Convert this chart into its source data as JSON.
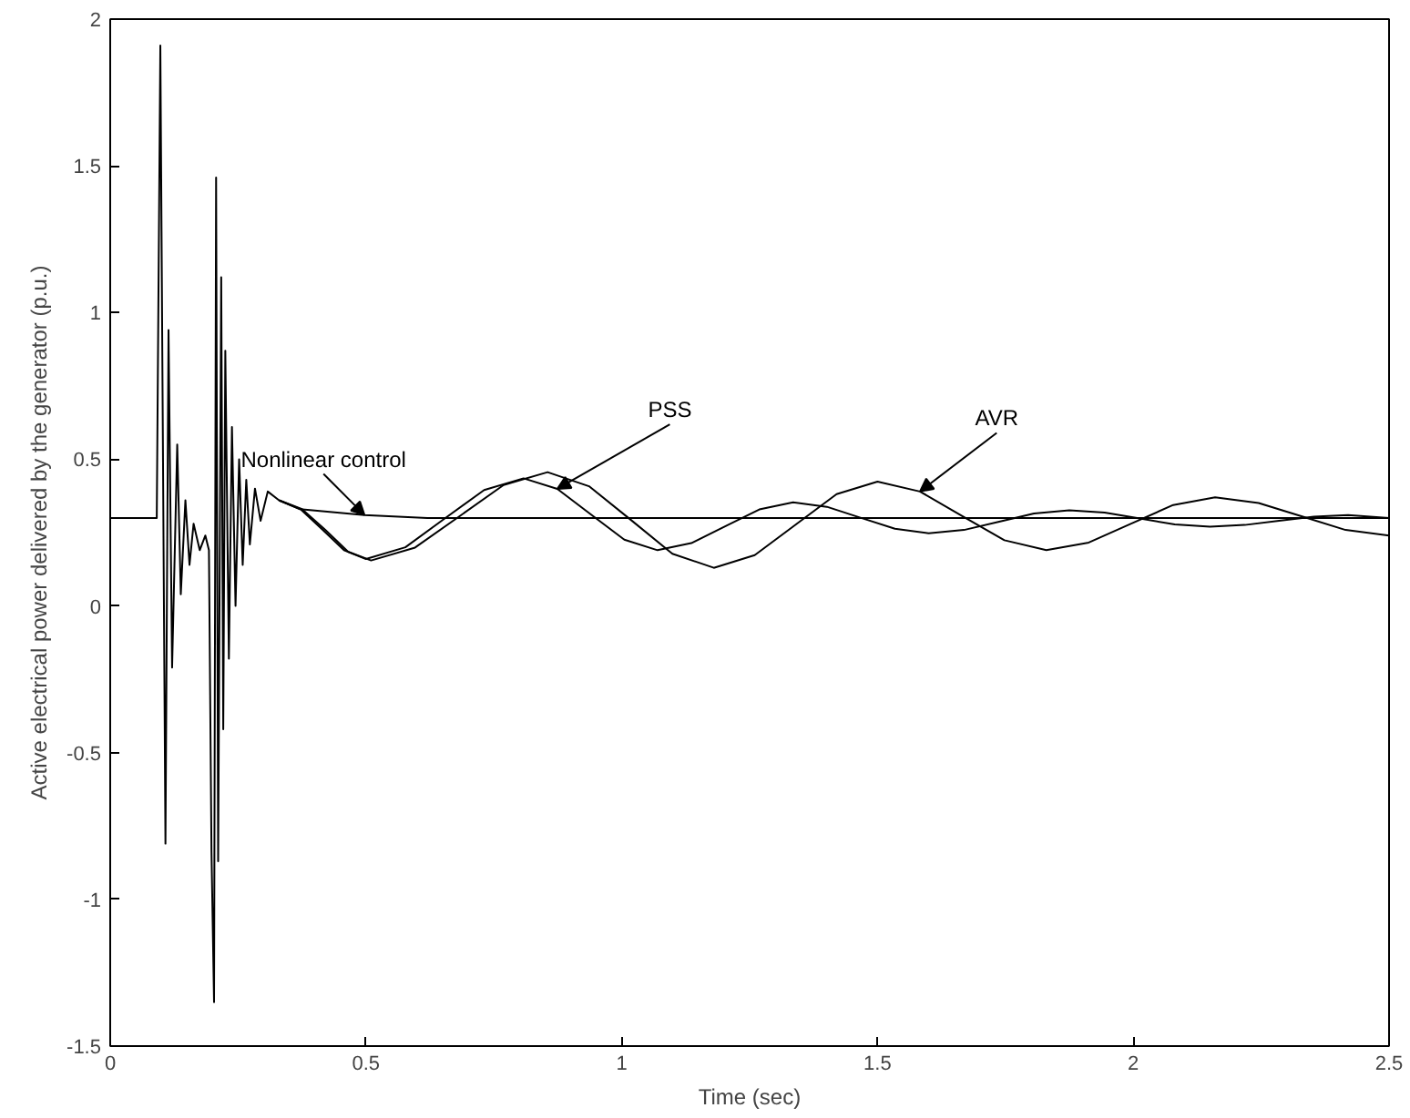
{
  "chart_data": {
    "type": "line",
    "xlabel": "Time (sec)",
    "ylabel": "Active electrical power delivered by the generator (p.u.)",
    "xlim": [
      0,
      2.5
    ],
    "ylim": [
      -1.5,
      2
    ],
    "xticks": [
      0,
      0.5,
      1,
      1.5,
      2,
      2.5
    ],
    "yticks": [
      -1.5,
      -1,
      -0.5,
      0,
      0.5,
      1,
      1.5,
      2
    ],
    "grid": false,
    "legend": false,
    "marker": "none",
    "line_style": "solid",
    "series": [
      {
        "name": "Nonlinear control",
        "color": "#000000",
        "x": [
          0,
          0.091,
          0.098,
          0.108,
          0.114,
          0.121,
          0.131,
          0.138,
          0.147,
          0.155,
          0.163,
          0.175,
          0.186,
          0.193,
          0.198,
          0.203,
          0.207,
          0.211,
          0.217,
          0.221,
          0.225,
          0.232,
          0.238,
          0.245,
          0.252,
          0.259,
          0.266,
          0.273,
          0.283,
          0.294,
          0.308,
          0.33,
          0.371,
          0.497,
          0.62,
          2.5
        ],
        "values": [
          0.3,
          0.3,
          1.91,
          -0.81,
          0.94,
          -0.21,
          0.55,
          0.04,
          0.36,
          0.14,
          0.28,
          0.19,
          0.24,
          0.19,
          -0.84,
          -1.35,
          1.46,
          -0.87,
          1.12,
          -0.42,
          0.87,
          -0.18,
          0.61,
          0.0,
          0.5,
          0.14,
          0.43,
          0.21,
          0.4,
          0.29,
          0.39,
          0.36,
          0.33,
          0.31,
          0.3,
          0.3
        ]
      },
      {
        "name": "PSS",
        "color": "#000000",
        "x": [
          0.33,
          0.372,
          0.415,
          0.457,
          0.5,
          0.577,
          0.654,
          0.731,
          0.808,
          0.874,
          0.939,
          1.005,
          1.07,
          1.136,
          1.203,
          1.269,
          1.335,
          1.401,
          1.468,
          1.534,
          1.6,
          1.669,
          1.738,
          1.806,
          1.875,
          1.944,
          2.013,
          2.081,
          2.15,
          2.218,
          2.285,
          2.353,
          2.42,
          2.5
        ],
        "values": [
          0.36,
          0.33,
          0.26,
          0.19,
          0.16,
          0.2,
          0.298,
          0.395,
          0.435,
          0.399,
          0.313,
          0.226,
          0.19,
          0.214,
          0.272,
          0.329,
          0.353,
          0.338,
          0.3,
          0.263,
          0.248,
          0.259,
          0.287,
          0.315,
          0.326,
          0.318,
          0.298,
          0.278,
          0.27,
          0.276,
          0.29,
          0.304,
          0.31,
          0.3
        ]
      },
      {
        "name": "AVR",
        "color": "#000000",
        "x": [
          0.33,
          0.375,
          0.42,
          0.465,
          0.51,
          0.596,
          0.683,
          0.769,
          0.855,
          0.936,
          1.018,
          1.099,
          1.18,
          1.26,
          1.34,
          1.42,
          1.5,
          1.583,
          1.665,
          1.748,
          1.83,
          1.913,
          1.995,
          2.078,
          2.16,
          2.245,
          2.33,
          2.415,
          2.5
        ],
        "values": [
          0.36,
          0.33,
          0.26,
          0.185,
          0.155,
          0.199,
          0.306,
          0.412,
          0.456,
          0.408,
          0.293,
          0.178,
          0.13,
          0.173,
          0.277,
          0.381,
          0.424,
          0.39,
          0.307,
          0.224,
          0.19,
          0.216,
          0.28,
          0.344,
          0.37,
          0.351,
          0.305,
          0.259,
          0.24
        ]
      }
    ]
  }
}
